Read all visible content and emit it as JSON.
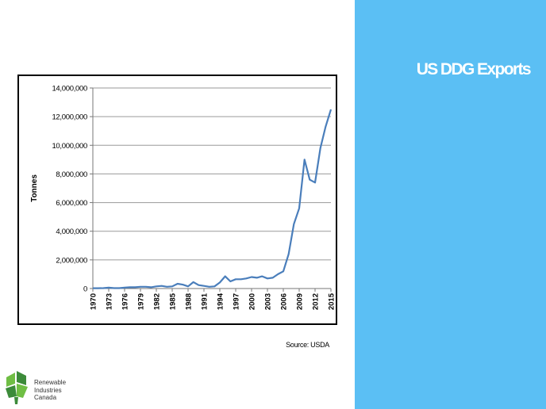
{
  "slide": {
    "title": "US DDG Exports",
    "source": "Source: USDA"
  },
  "logo": {
    "lines": [
      "Renewable",
      "Industries",
      "Canada"
    ],
    "colors": [
      "#6fbe44",
      "#3c8b3a"
    ]
  },
  "colors": {
    "panel": "#5bbff4",
    "line": "#4a7ebb",
    "grid": "#9a9a9a"
  },
  "chart_data": {
    "type": "line",
    "ylabel": "Tonnes",
    "xlabel": "",
    "ylim": [
      0,
      14000000
    ],
    "xlim": [
      1970,
      2015
    ],
    "yticks": [
      0,
      2000000,
      4000000,
      6000000,
      8000000,
      10000000,
      12000000,
      14000000
    ],
    "ytick_labels": [
      "0",
      "2,000,000",
      "4,000,000",
      "6,000,000",
      "8,000,000",
      "10,000,000",
      "12,000,000",
      "14,000,000"
    ],
    "xtick_labels": [
      "1970",
      "1973",
      "1976",
      "1979",
      "1982",
      "1985",
      "1988",
      "1991",
      "1994",
      "1997",
      "2000",
      "2003",
      "2006",
      "2009",
      "2012",
      "2015"
    ],
    "grid": "horizontal",
    "series": [
      {
        "x": [
          1970,
          1971,
          1972,
          1973,
          1974,
          1975,
          1976,
          1977,
          1978,
          1979,
          1980,
          1981,
          1982,
          1983,
          1984,
          1985,
          1986,
          1987,
          1988,
          1989,
          1990,
          1991,
          1992,
          1993,
          1994,
          1995,
          1996,
          1997,
          1998,
          1999,
          2000,
          2001,
          2002,
          2003,
          2004,
          2005,
          2006,
          2007,
          2008,
          2009,
          2010,
          2011,
          2012,
          2013,
          2014,
          2015
        ],
        "values": [
          20000,
          20000,
          30000,
          60000,
          30000,
          30000,
          60000,
          90000,
          90000,
          120000,
          120000,
          90000,
          150000,
          180000,
          120000,
          150000,
          330000,
          270000,
          150000,
          450000,
          240000,
          180000,
          120000,
          150000,
          420000,
          850000,
          500000,
          650000,
          650000,
          700000,
          800000,
          750000,
          850000,
          700000,
          750000,
          1000000,
          1200000,
          2400000,
          4500000,
          5600000,
          9000000,
          7600000,
          7400000,
          9800000,
          11300000,
          12500000
        ]
      }
    ]
  }
}
